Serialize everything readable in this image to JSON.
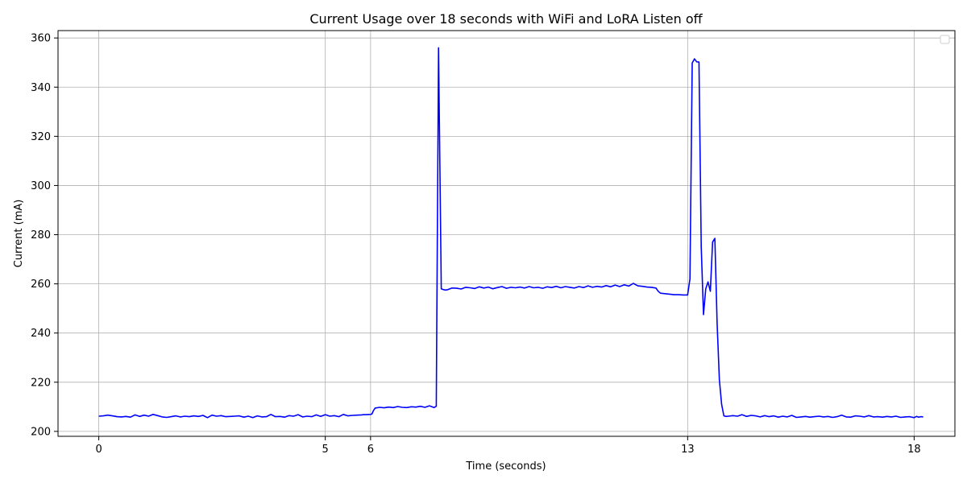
{
  "chart_data": {
    "type": "line",
    "title": "Current Usage over 18 seconds with WiFi and LoRA Listen off",
    "xlabel": "Time (seconds)",
    "ylabel": "Current (mA)",
    "xlim": [
      -0.9,
      18.9
    ],
    "ylim": [
      198,
      363
    ],
    "xticks": [
      0,
      5,
      6,
      13,
      18
    ],
    "xtick_labels": [
      "0",
      "5",
      "6",
      "13",
      "18"
    ],
    "yticks": [
      200,
      220,
      240,
      260,
      280,
      300,
      320,
      340,
      360
    ],
    "ytick_labels": [
      "200",
      "220",
      "240",
      "260",
      "280",
      "300",
      "320",
      "340",
      "360"
    ],
    "grid": true,
    "legend": "top-right, empty",
    "colors": {
      "line": "#0000ff",
      "grid": "#b0b0b0",
      "axes": "#000000"
    },
    "series": [
      {
        "points": [
          [
            0.0,
            206.2
          ],
          [
            0.1,
            206.3
          ],
          [
            0.2,
            206.6
          ],
          [
            0.3,
            206.3
          ],
          [
            0.4,
            206.0
          ],
          [
            0.5,
            205.9
          ],
          [
            0.6,
            206.1
          ],
          [
            0.7,
            205.8
          ],
          [
            0.8,
            206.7
          ],
          [
            0.9,
            206.1
          ],
          [
            1.0,
            206.6
          ],
          [
            1.1,
            206.2
          ],
          [
            1.2,
            206.9
          ],
          [
            1.3,
            206.4
          ],
          [
            1.4,
            205.9
          ],
          [
            1.5,
            205.7
          ],
          [
            1.6,
            206.0
          ],
          [
            1.7,
            206.3
          ],
          [
            1.8,
            205.9
          ],
          [
            1.9,
            206.2
          ],
          [
            2.0,
            206.0
          ],
          [
            2.1,
            206.3
          ],
          [
            2.2,
            206.1
          ],
          [
            2.3,
            206.5
          ],
          [
            2.4,
            205.6
          ],
          [
            2.5,
            206.6
          ],
          [
            2.6,
            206.2
          ],
          [
            2.7,
            206.4
          ],
          [
            2.8,
            206.0
          ],
          [
            2.9,
            206.1
          ],
          [
            3.0,
            206.2
          ],
          [
            3.1,
            206.3
          ],
          [
            3.2,
            205.8
          ],
          [
            3.3,
            206.2
          ],
          [
            3.4,
            205.6
          ],
          [
            3.5,
            206.3
          ],
          [
            3.6,
            205.9
          ],
          [
            3.7,
            206.0
          ],
          [
            3.8,
            206.9
          ],
          [
            3.9,
            206.0
          ],
          [
            4.0,
            206.1
          ],
          [
            4.1,
            205.8
          ],
          [
            4.2,
            206.4
          ],
          [
            4.3,
            206.2
          ],
          [
            4.4,
            206.8
          ],
          [
            4.5,
            205.9
          ],
          [
            4.6,
            206.2
          ],
          [
            4.7,
            206.0
          ],
          [
            4.8,
            206.7
          ],
          [
            4.9,
            206.1
          ],
          [
            5.0,
            206.8
          ],
          [
            5.1,
            206.2
          ],
          [
            5.2,
            206.4
          ],
          [
            5.3,
            206.0
          ],
          [
            5.4,
            206.9
          ],
          [
            5.5,
            206.3
          ],
          [
            5.6,
            206.5
          ],
          [
            5.7,
            206.6
          ],
          [
            5.8,
            206.7
          ],
          [
            5.85,
            206.8
          ],
          [
            5.9,
            206.8
          ],
          [
            6.0,
            206.9
          ],
          [
            6.03,
            207.1
          ],
          [
            6.06,
            208.3
          ],
          [
            6.1,
            209.5
          ],
          [
            6.2,
            209.8
          ],
          [
            6.3,
            209.6
          ],
          [
            6.4,
            209.9
          ],
          [
            6.5,
            209.7
          ],
          [
            6.6,
            210.1
          ],
          [
            6.7,
            209.8
          ],
          [
            6.8,
            209.7
          ],
          [
            6.9,
            210.0
          ],
          [
            7.0,
            209.9
          ],
          [
            7.1,
            210.2
          ],
          [
            7.2,
            209.8
          ],
          [
            7.3,
            210.4
          ],
          [
            7.4,
            209.7
          ],
          [
            7.45,
            210.2
          ],
          [
            7.5,
            356.0
          ],
          [
            7.56,
            258.0
          ],
          [
            7.6,
            257.7
          ],
          [
            7.65,
            257.5
          ],
          [
            7.7,
            257.6
          ],
          [
            7.8,
            258.3
          ],
          [
            7.9,
            258.2
          ],
          [
            8.0,
            257.9
          ],
          [
            8.1,
            258.6
          ],
          [
            8.2,
            258.4
          ],
          [
            8.3,
            258.1
          ],
          [
            8.4,
            258.8
          ],
          [
            8.5,
            258.3
          ],
          [
            8.6,
            258.7
          ],
          [
            8.7,
            258.0
          ],
          [
            8.8,
            258.5
          ],
          [
            8.9,
            258.9
          ],
          [
            9.0,
            258.2
          ],
          [
            9.1,
            258.6
          ],
          [
            9.2,
            258.4
          ],
          [
            9.3,
            258.7
          ],
          [
            9.4,
            258.3
          ],
          [
            9.5,
            258.9
          ],
          [
            9.6,
            258.4
          ],
          [
            9.7,
            258.6
          ],
          [
            9.8,
            258.2
          ],
          [
            9.9,
            258.8
          ],
          [
            10.0,
            258.5
          ],
          [
            10.1,
            259.0
          ],
          [
            10.2,
            258.4
          ],
          [
            10.3,
            258.9
          ],
          [
            10.4,
            258.6
          ],
          [
            10.5,
            258.3
          ],
          [
            10.6,
            258.9
          ],
          [
            10.7,
            258.5
          ],
          [
            10.8,
            259.2
          ],
          [
            10.9,
            258.6
          ],
          [
            11.0,
            259.0
          ],
          [
            11.1,
            258.7
          ],
          [
            11.2,
            259.3
          ],
          [
            11.3,
            258.8
          ],
          [
            11.4,
            259.5
          ],
          [
            11.5,
            258.9
          ],
          [
            11.6,
            259.6
          ],
          [
            11.7,
            259.1
          ],
          [
            11.8,
            260.2
          ],
          [
            11.9,
            259.2
          ],
          [
            12.0,
            259.0
          ],
          [
            12.1,
            258.7
          ],
          [
            12.2,
            258.6
          ],
          [
            12.3,
            258.3
          ],
          [
            12.35,
            257.0
          ],
          [
            12.4,
            256.2
          ],
          [
            12.5,
            256.0
          ],
          [
            12.6,
            255.8
          ],
          [
            12.7,
            255.6
          ],
          [
            12.8,
            255.6
          ],
          [
            12.9,
            255.5
          ],
          [
            13.0,
            255.5
          ],
          [
            13.05,
            262.0
          ],
          [
            13.1,
            349.8
          ],
          [
            13.15,
            351.5
          ],
          [
            13.2,
            350.3
          ],
          [
            13.25,
            350.2
          ],
          [
            13.3,
            275.0
          ],
          [
            13.35,
            247.5
          ],
          [
            13.4,
            258.0
          ],
          [
            13.45,
            260.8
          ],
          [
            13.5,
            257.0
          ],
          [
            13.55,
            277.0
          ],
          [
            13.6,
            278.5
          ],
          [
            13.65,
            244.0
          ],
          [
            13.7,
            221.0
          ],
          [
            13.75,
            211.0
          ],
          [
            13.8,
            206.3
          ],
          [
            13.85,
            206.1
          ],
          [
            13.9,
            206.2
          ],
          [
            14.0,
            206.4
          ],
          [
            14.1,
            206.2
          ],
          [
            14.2,
            206.8
          ],
          [
            14.3,
            206.1
          ],
          [
            14.4,
            206.5
          ],
          [
            14.5,
            206.3
          ],
          [
            14.6,
            205.9
          ],
          [
            14.7,
            206.4
          ],
          [
            14.8,
            206.0
          ],
          [
            14.9,
            206.3
          ],
          [
            15.0,
            205.8
          ],
          [
            15.1,
            206.2
          ],
          [
            15.2,
            205.9
          ],
          [
            15.3,
            206.5
          ],
          [
            15.4,
            205.7
          ],
          [
            15.5,
            205.9
          ],
          [
            15.6,
            206.1
          ],
          [
            15.7,
            205.8
          ],
          [
            15.8,
            206.0
          ],
          [
            15.9,
            206.2
          ],
          [
            16.0,
            205.9
          ],
          [
            16.1,
            206.1
          ],
          [
            16.2,
            205.7
          ],
          [
            16.3,
            206.0
          ],
          [
            16.4,
            206.6
          ],
          [
            16.5,
            205.9
          ],
          [
            16.6,
            205.8
          ],
          [
            16.7,
            206.3
          ],
          [
            16.8,
            206.2
          ],
          [
            16.9,
            205.9
          ],
          [
            17.0,
            206.4
          ],
          [
            17.1,
            205.9
          ],
          [
            17.2,
            206.0
          ],
          [
            17.3,
            205.8
          ],
          [
            17.4,
            206.1
          ],
          [
            17.5,
            205.9
          ],
          [
            17.6,
            206.2
          ],
          [
            17.7,
            205.7
          ],
          [
            17.8,
            205.9
          ],
          [
            17.9,
            206.0
          ],
          [
            18.0,
            205.6
          ],
          [
            18.05,
            206.1
          ],
          [
            18.1,
            205.8
          ],
          [
            18.15,
            206.0
          ],
          [
            18.2,
            205.9
          ]
        ]
      }
    ]
  }
}
